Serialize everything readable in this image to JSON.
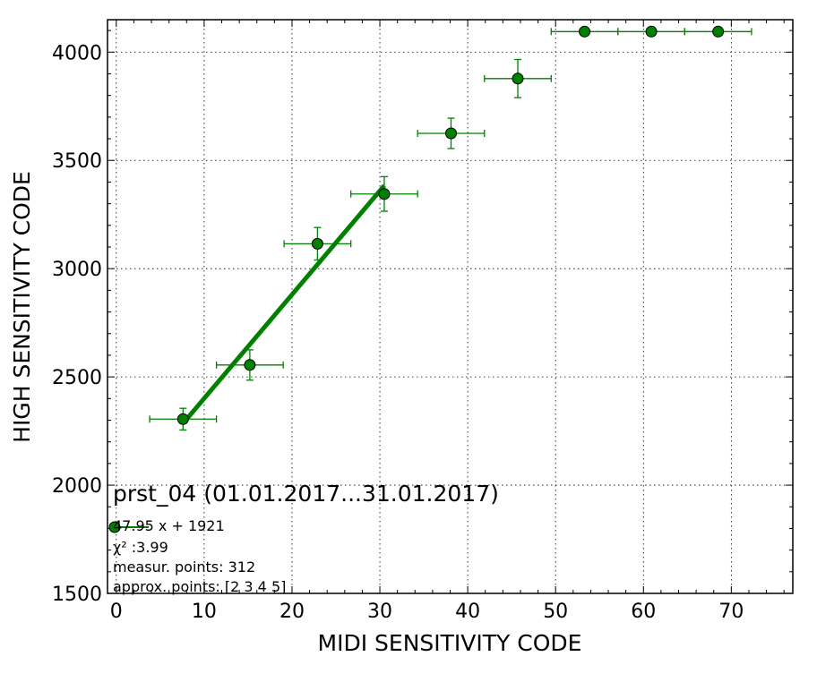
{
  "chart_data": {
    "type": "scatter",
    "xlabel": "MIDI SENSITIVITY CODE",
    "ylabel": "HIGH SENSITIVITY CODE",
    "xlim": [
      -1,
      77
    ],
    "ylim": [
      1500,
      4150
    ],
    "xticks": [
      0,
      10,
      20,
      30,
      40,
      50,
      60,
      70
    ],
    "yticks": [
      1500,
      2000,
      2500,
      3000,
      3500,
      4000
    ],
    "grid": true,
    "marker_color": "#008000",
    "series": [
      {
        "points": [
          {
            "x": 7.6,
            "y": 2305,
            "xerr": 3.8,
            "yerr": 50
          },
          {
            "x": 15.2,
            "y": 2555,
            "xerr": 3.8,
            "yerr": 70
          },
          {
            "x": 22.9,
            "y": 3115,
            "xerr": 3.8,
            "yerr": 75
          },
          {
            "x": 30.5,
            "y": 3345,
            "xerr": 3.8,
            "yerr": 80
          },
          {
            "x": 38.1,
            "y": 3625,
            "xerr": 3.8,
            "yerr": 70
          },
          {
            "x": 45.7,
            "y": 3878,
            "xerr": 3.8,
            "yerr": 88
          },
          {
            "x": 53.3,
            "y": 4095,
            "xerr": 3.8,
            "yerr": 0
          },
          {
            "x": 60.9,
            "y": 4095,
            "xerr": 3.8,
            "yerr": 0
          },
          {
            "x": 68.5,
            "y": 4095,
            "xerr": 3.8,
            "yerr": 0
          }
        ]
      }
    ],
    "fit": {
      "slope": 47.95,
      "intercept": 1921,
      "x_range": [
        7.6,
        30.5
      ],
      "color": "#008000"
    },
    "annotations": {
      "title": "prst_04 (01.01.2017...31.01.2017)",
      "fit_label": "47.95 x + 1921",
      "chi_label": "χ² :3.99",
      "measur_label": "measur. points: 312",
      "approx_label": "approx. points: [2 3 4 5]"
    }
  }
}
